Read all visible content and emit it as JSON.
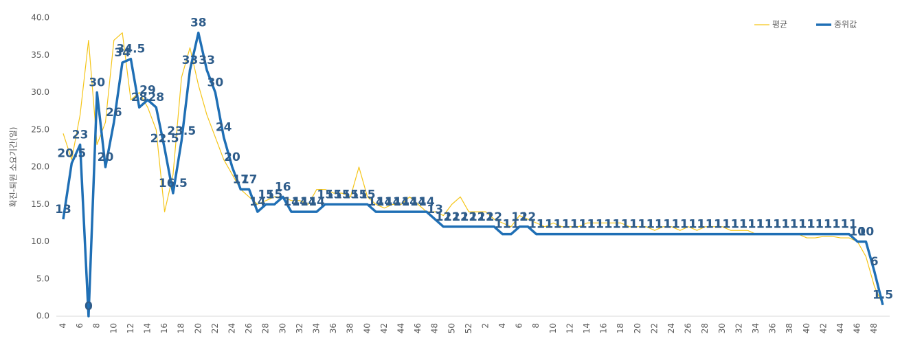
{
  "chart_data": {
    "type": "line",
    "y_axis_label": "확진-퇴원 소요기간(일)",
    "categories": [
      "4",
      null,
      "6",
      null,
      "8",
      null,
      "10",
      null,
      "12",
      null,
      "14",
      null,
      "16",
      null,
      "18",
      null,
      "20",
      null,
      "22",
      null,
      "24",
      null,
      "26",
      null,
      "28",
      null,
      "30",
      null,
      "32",
      null,
      "34",
      null,
      "36",
      null,
      "38",
      null,
      "40",
      null,
      "42",
      null,
      "44",
      null,
      "46",
      null,
      "48",
      null,
      "50",
      null,
      "52",
      null,
      "2",
      null,
      "4",
      null,
      "6",
      null,
      "8",
      null,
      "10",
      null,
      "12",
      null,
      "14",
      null,
      "16",
      null,
      "18",
      null,
      "20",
      null,
      "22",
      null,
      "24",
      null,
      "26",
      null,
      "28",
      null,
      "30",
      null,
      "32",
      null,
      "34",
      null,
      "36",
      null,
      "38",
      null,
      "40",
      null,
      "42",
      null,
      "44",
      null,
      "46",
      null,
      "48",
      null
    ],
    "series": [
      {
        "name": "평균",
        "color": "#f5c518",
        "width": 1.2,
        "values": [
          24.5,
          21,
          27,
          37,
          23,
          26,
          37,
          38,
          29,
          30,
          28,
          25,
          14,
          19,
          32,
          36,
          31,
          27,
          24,
          21,
          19,
          17,
          16,
          15,
          15.5,
          16,
          16,
          15.5,
          15.5,
          15,
          17,
          17,
          16.5,
          16.5,
          16,
          20,
          16,
          15,
          14.5,
          15,
          15,
          16,
          15,
          14,
          14,
          13.5,
          15,
          16,
          14,
          14,
          14,
          13,
          12.5,
          12,
          13.5,
          13,
          12.5,
          12,
          12.5,
          12,
          12,
          12,
          12.5,
          12.5,
          12.5,
          12.5,
          12.5,
          12,
          12,
          12,
          11.5,
          12,
          12,
          11.5,
          12,
          11.5,
          12,
          12,
          12,
          11.5,
          11.5,
          11.5,
          11,
          11,
          11,
          11,
          11,
          11,
          10.5,
          10.5,
          10.7,
          10.7,
          10.5,
          10.5,
          10,
          8,
          4,
          1.5
        ]
      },
      {
        "name": "중위값",
        "color": "#1f6fb5",
        "width": 3.5,
        "data_labels": true,
        "values": [
          13,
          20.5,
          23,
          0,
          30,
          20,
          26,
          34,
          34.5,
          28,
          29,
          28,
          22.5,
          16.5,
          23.5,
          33,
          38,
          33,
          30,
          24,
          20,
          17,
          17,
          14,
          15,
          15,
          16,
          14,
          14,
          14,
          14,
          15,
          15,
          15,
          15,
          15,
          15,
          14,
          14,
          14,
          14,
          14,
          14,
          14,
          13,
          12,
          12,
          12,
          12,
          12,
          12,
          12,
          11,
          11,
          12,
          12,
          11,
          11,
          11,
          11,
          11,
          11,
          11,
          11,
          11,
          11,
          11,
          11,
          11,
          11,
          11,
          11,
          11,
          11,
          11,
          11,
          11,
          11,
          11,
          11,
          11,
          11,
          11,
          11,
          11,
          11,
          11,
          11,
          11,
          11,
          11,
          11,
          11,
          11,
          10,
          10,
          6,
          1.5
        ]
      }
    ],
    "ylim": [
      0,
      40
    ],
    "yticks": [
      {
        "value": 0,
        "label": "0.0"
      },
      {
        "value": 5,
        "label": "5.0"
      },
      {
        "value": 10,
        "label": "10.0"
      },
      {
        "value": 15,
        "label": "15.0"
      },
      {
        "value": 20,
        "label": "20.0"
      },
      {
        "value": 25,
        "label": "25.0"
      },
      {
        "value": 30,
        "label": "30.0"
      },
      {
        "value": 35,
        "label": "35.0"
      },
      {
        "value": 40,
        "label": "40.0"
      }
    ],
    "legend": "top-right"
  }
}
